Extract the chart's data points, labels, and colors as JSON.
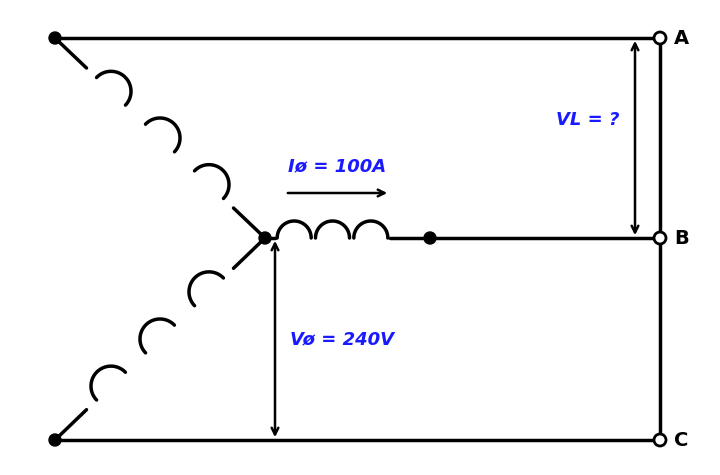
{
  "bg_color": "#ffffff",
  "line_color": "#000000",
  "annotation_color": "#1a1aff",
  "label_Iphi": "Iø = 100A",
  "label_Vphi": "Vø = 240V",
  "label_VL": "VL = ?",
  "lw": 2.5,
  "figsize": [
    7.2,
    4.75
  ],
  "dpi": 100
}
